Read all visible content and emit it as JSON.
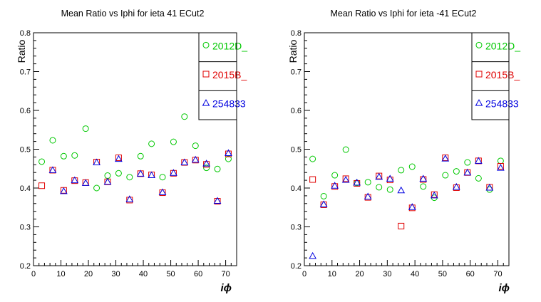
{
  "chart_data": [
    {
      "type": "scatter",
      "title": "Mean Ratio vs Iphi for ieta 41 ECut2",
      "xlabel": "iϕ",
      "ylabel": "Ratio",
      "xlim": [
        0,
        74
      ],
      "ylim": [
        0.2,
        0.8
      ],
      "xticks": [
        0,
        10,
        20,
        30,
        40,
        50,
        60,
        70
      ],
      "xtick_labels": [
        "0",
        "10",
        "20",
        "30",
        "40",
        "50",
        "60",
        "70"
      ],
      "yticks": [
        0.2,
        0.3,
        0.4,
        0.5,
        0.6,
        0.7,
        0.8
      ],
      "ytick_labels": [
        "0.2",
        "0.3",
        "0.4",
        "0.5",
        "0.6",
        "0.7",
        "0.8"
      ],
      "legend_position": "top-right",
      "series": [
        {
          "name": "2012D_",
          "marker": "circle",
          "color": "#00c800",
          "points": [
            [
              3,
              0.468
            ],
            [
              7,
              0.523
            ],
            [
              11,
              0.482
            ],
            [
              15,
              0.484
            ],
            [
              19,
              0.553
            ],
            [
              23,
              0.4
            ],
            [
              27,
              0.432
            ],
            [
              31,
              0.438
            ],
            [
              35,
              0.428
            ],
            [
              39,
              0.482
            ],
            [
              43,
              0.514
            ],
            [
              47,
              0.428
            ],
            [
              51,
              0.519
            ],
            [
              55,
              0.584
            ],
            [
              59,
              0.509
            ],
            [
              63,
              0.452
            ],
            [
              67,
              0.449
            ],
            [
              71,
              0.475
            ]
          ]
        },
        {
          "name": "2015B_",
          "marker": "square",
          "color": "#e00000",
          "points": [
            [
              3,
              0.406
            ],
            [
              7,
              0.446
            ],
            [
              11,
              0.394
            ],
            [
              15,
              0.419
            ],
            [
              19,
              0.414
            ],
            [
              23,
              0.467
            ],
            [
              27,
              0.416
            ],
            [
              31,
              0.478
            ],
            [
              35,
              0.369
            ],
            [
              39,
              0.437
            ],
            [
              43,
              0.434
            ],
            [
              47,
              0.388
            ],
            [
              51,
              0.438
            ],
            [
              55,
              0.466
            ],
            [
              59,
              0.472
            ],
            [
              63,
              0.461
            ],
            [
              67,
              0.366
            ],
            [
              71,
              0.488
            ]
          ]
        },
        {
          "name": "254833",
          "marker": "triangle",
          "color": "#0000e0",
          "points": [
            [
              7,
              0.446
            ],
            [
              11,
              0.392
            ],
            [
              15,
              0.42
            ],
            [
              19,
              0.413
            ],
            [
              23,
              0.466
            ],
            [
              27,
              0.416
            ],
            [
              31,
              0.475
            ],
            [
              35,
              0.371
            ],
            [
              39,
              0.437
            ],
            [
              43,
              0.433
            ],
            [
              47,
              0.389
            ],
            [
              51,
              0.439
            ],
            [
              55,
              0.466
            ],
            [
              59,
              0.473
            ],
            [
              63,
              0.463
            ],
            [
              67,
              0.367
            ],
            [
              71,
              0.49
            ]
          ]
        }
      ]
    },
    {
      "type": "scatter",
      "title": "Mean Ratio vs Iphi for ieta -41 ECut2",
      "xlabel": "iϕ",
      "ylabel": "Ratio",
      "xlim": [
        0,
        74
      ],
      "ylim": [
        0.2,
        0.8
      ],
      "xticks": [
        0,
        10,
        20,
        30,
        40,
        50,
        60,
        70
      ],
      "xtick_labels": [
        "0",
        "10",
        "20",
        "30",
        "40",
        "50",
        "60",
        "70"
      ],
      "yticks": [
        0.2,
        0.3,
        0.4,
        0.5,
        0.6,
        0.7,
        0.8
      ],
      "ytick_labels": [
        "0.2",
        "0.3",
        "0.4",
        "0.5",
        "0.6",
        "0.7",
        "0.8"
      ],
      "legend_position": "top-right",
      "series": [
        {
          "name": "2012D_",
          "marker": "circle",
          "color": "#00c800",
          "points": [
            [
              3,
              0.475
            ],
            [
              7,
              0.379
            ],
            [
              11,
              0.433
            ],
            [
              15,
              0.499
            ],
            [
              19,
              0.413
            ],
            [
              23,
              0.415
            ],
            [
              27,
              0.402
            ],
            [
              31,
              0.396
            ],
            [
              35,
              0.446
            ],
            [
              39,
              0.455
            ],
            [
              43,
              0.404
            ],
            [
              47,
              0.375
            ],
            [
              51,
              0.433
            ],
            [
              55,
              0.443
            ],
            [
              59,
              0.466
            ],
            [
              63,
              0.425
            ],
            [
              67,
              0.396
            ],
            [
              71,
              0.47
            ]
          ]
        },
        {
          "name": "2015B_",
          "marker": "square",
          "color": "#e00000",
          "points": [
            [
              3,
              0.422
            ],
            [
              7,
              0.357
            ],
            [
              11,
              0.404
            ],
            [
              15,
              0.424
            ],
            [
              19,
              0.412
            ],
            [
              23,
              0.376
            ],
            [
              27,
              0.431
            ],
            [
              31,
              0.421
            ],
            [
              35,
              0.302
            ],
            [
              39,
              0.349
            ],
            [
              43,
              0.422
            ],
            [
              47,
              0.383
            ],
            [
              51,
              0.478
            ],
            [
              55,
              0.401
            ],
            [
              59,
              0.44
            ],
            [
              63,
              0.47
            ],
            [
              67,
              0.402
            ],
            [
              71,
              0.456
            ]
          ]
        },
        {
          "name": "254833",
          "marker": "triangle",
          "color": "#0000e0",
          "points": [
            [
              3,
              0.225
            ],
            [
              7,
              0.358
            ],
            [
              11,
              0.406
            ],
            [
              15,
              0.421
            ],
            [
              19,
              0.414
            ],
            [
              23,
              0.378
            ],
            [
              27,
              0.429
            ],
            [
              31,
              0.424
            ],
            [
              35,
              0.394
            ],
            [
              39,
              0.351
            ],
            [
              43,
              0.424
            ],
            [
              47,
              0.381
            ],
            [
              51,
              0.476
            ],
            [
              55,
              0.403
            ],
            [
              59,
              0.44
            ],
            [
              63,
              0.47
            ],
            [
              67,
              0.401
            ],
            [
              71,
              0.452
            ]
          ]
        }
      ]
    }
  ]
}
